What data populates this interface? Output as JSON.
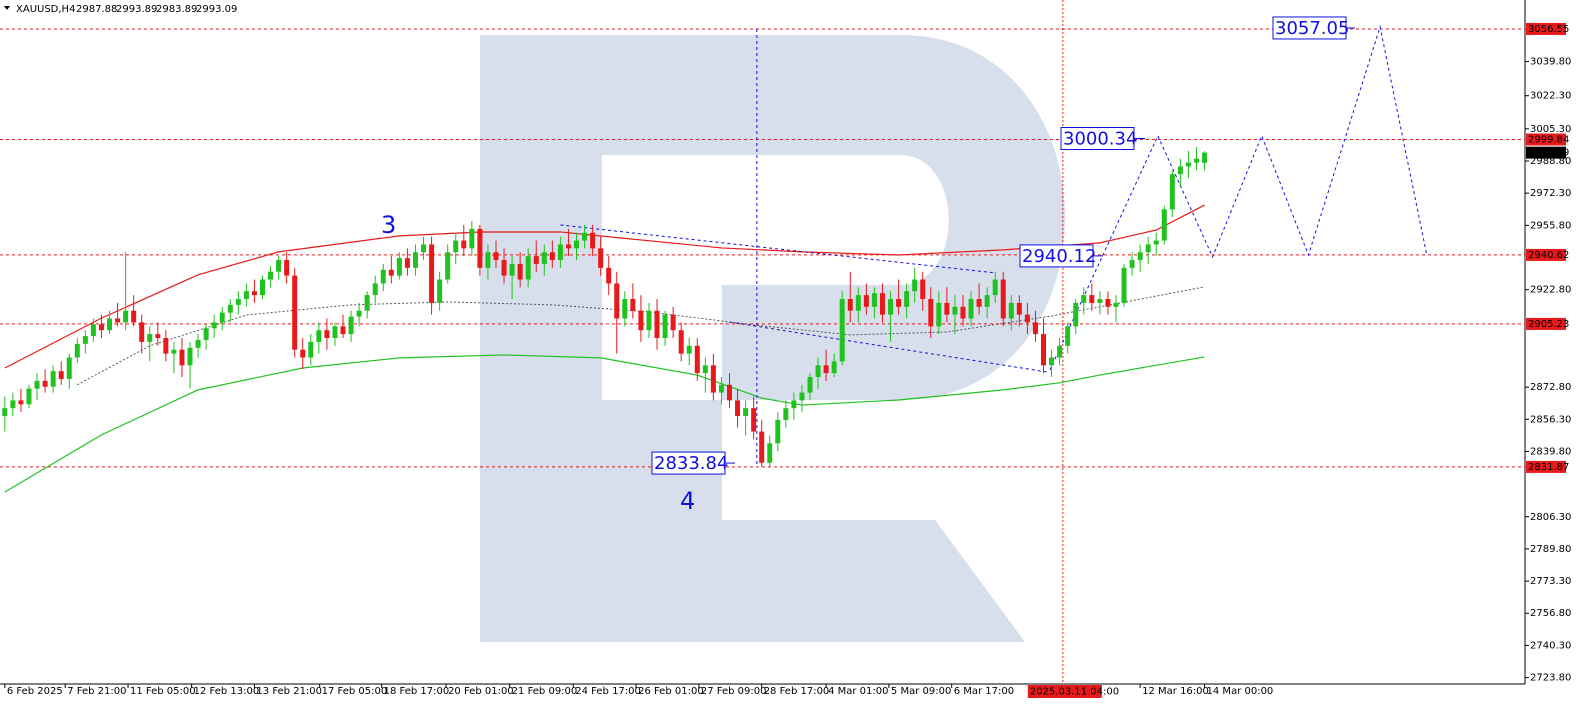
{
  "chart_data": {
    "type": "candlestick",
    "title": "XAUUSD,H4",
    "up_color": "#1fc21f",
    "down_color": "#e8191b",
    "xlim": [
      -0.6,
      188.8
    ],
    "ylim": [
      2720.5,
      3071.4
    ],
    "yticks": [
      {
        "value": 3039.8,
        "label": "3039.80"
      },
      {
        "value": 3022.3,
        "label": "3022.30"
      },
      {
        "value": 3005.3,
        "label": "3005.30"
      },
      {
        "value": 2988.8,
        "label": "2988.80"
      },
      {
        "value": 2972.3,
        "label": "2972.30"
      },
      {
        "value": 2955.8,
        "label": "2955.80"
      },
      {
        "value": 2922.8,
        "label": "2922.80"
      },
      {
        "value": 2872.8,
        "label": "2872.80"
      },
      {
        "value": 2856.3,
        "label": "2856.30"
      },
      {
        "value": 2839.8,
        "label": "2839.80"
      },
      {
        "value": 2806.3,
        "label": "2806.30"
      },
      {
        "value": 2789.8,
        "label": "2789.80"
      },
      {
        "value": 2773.3,
        "label": "2773.30"
      },
      {
        "value": 2756.8,
        "label": "2756.80"
      },
      {
        "value": 2740.3,
        "label": "2740.30"
      },
      {
        "value": 2723.8,
        "label": "2723.80"
      }
    ],
    "xticks": [
      {
        "value": 0,
        "label": "6 Feb 2025"
      },
      {
        "value": 7.5,
        "label": "7 Feb 21:00"
      },
      {
        "value": 15.3,
        "label": "11 Feb 05:00"
      },
      {
        "value": 23.2,
        "label": "12 Feb 13:00"
      },
      {
        "value": 31,
        "label": "13 Feb 21:00"
      },
      {
        "value": 39.1,
        "label": "17 Feb 05:00"
      },
      {
        "value": 46.8,
        "label": "18 Feb 17:00"
      },
      {
        "value": 54.8,
        "label": "20 Feb 01:00"
      },
      {
        "value": 62.7,
        "label": "21 Feb 09:00"
      },
      {
        "value": 70.6,
        "label": "24 Feb 17:00"
      },
      {
        "value": 78.4,
        "label": "26 Feb 01:00"
      },
      {
        "value": 86.2,
        "label": "27 Feb 09:00"
      },
      {
        "value": 94,
        "label": "28 Feb 17:00"
      },
      {
        "value": 102,
        "label": "4 Mar 01:00"
      },
      {
        "value": 109.8,
        "label": "5 Mar 09:00"
      },
      {
        "value": 117.6,
        "label": "6 Mar 17:00"
      },
      {
        "value": 141,
        "label": "12 Mar 16:00"
      },
      {
        "value": 149,
        "label": "14 Mar 00:00"
      }
    ],
    "crosshair": {
      "value": 131.4,
      "label": "2025.03.11 04:00"
    },
    "levels": [
      3056.55,
      2999.84,
      2940.62,
      2905.23,
      2831.87
    ],
    "wave_labels": [
      "3",
      "4"
    ],
    "price_labels": [
      3057.05,
      3000.34,
      2940.12,
      2833.84
    ],
    "lines": [
      {
        "color": "#e8191b",
        "style": "solid",
        "x": [
          0,
          12,
          24,
          34,
          49,
          59,
          69,
          79,
          89,
          99,
          111,
          124,
          136,
          143,
          149
        ],
        "values": [
          2882.6,
          2908.2,
          2930.4,
          2942.2,
          2950.4,
          2952.4,
          2952.4,
          2948.3,
          2944.2,
          2942.2,
          2940.6,
          2943.2,
          2946.8,
          2953.4,
          2966.2
        ]
      },
      {
        "color": "#1fc21f",
        "style": "solid",
        "x": [
          0,
          12,
          24,
          37,
          49,
          62,
          74,
          86,
          94,
          99,
          111,
          124,
          131,
          136,
          149
        ],
        "values": [
          2819.0,
          2848.3,
          2871.4,
          2882.6,
          2887.8,
          2889.3,
          2887.8,
          2879.0,
          2867.2,
          2863.6,
          2866.2,
          2871.4,
          2875.0,
          2879.0,
          2888.3
        ]
      },
      {
        "color": "#555555",
        "style": "dotted",
        "x": [
          9,
          18,
          30,
          43,
          55,
          68,
          80,
          93,
          105,
          117,
          130,
          149
        ],
        "values": [
          2874.0,
          2894.0,
          2909.8,
          2915.0,
          2916.5,
          2915.0,
          2911.4,
          2904.7,
          2899.6,
          2901.1,
          2909.3,
          2924.2
        ]
      },
      {
        "color": "#1010e0",
        "style": "dashed",
        "x": [
          129.8,
          143.2,
          150,
          156.1,
          161.9,
          170.8,
          176.6
        ],
        "values": [
          2881.6,
          3001.7,
          2939.6,
          3001.7,
          2940.6,
          3057.6,
          2940.6
        ]
      },
      {
        "color": "#1010e0",
        "style": "dashed",
        "x": [
          69,
          123
        ],
        "values": [
          2956.0,
          2931.4
        ]
      },
      {
        "color": "#1010e0",
        "style": "dashed",
        "x": [
          90,
          129.4
        ],
        "values": [
          2906.2,
          2880.6
        ]
      },
      {
        "color": "#1010e0",
        "style": "dashed",
        "x": [
          93.4,
          93.4
        ],
        "values": [
          3056.55,
          2832.9
        ]
      }
    ],
    "candles": [
      [
        2858,
        2868,
        2850,
        2862
      ],
      [
        2862,
        2870,
        2858,
        2866
      ],
      [
        2866,
        2872,
        2860,
        2864
      ],
      [
        2864,
        2874,
        2862,
        2872
      ],
      [
        2872,
        2880,
        2866,
        2876
      ],
      [
        2876,
        2882,
        2870,
        2873
      ],
      [
        2873,
        2884,
        2870,
        2881
      ],
      [
        2881,
        2886,
        2874,
        2877
      ],
      [
        2877,
        2890,
        2872,
        2888
      ],
      [
        2888,
        2898,
        2885,
        2895
      ],
      [
        2895,
        2902,
        2890,
        2899
      ],
      [
        2899,
        2908,
        2896,
        2905
      ],
      [
        2905,
        2910,
        2898,
        2902
      ],
      [
        2902,
        2912,
        2900,
        2908
      ],
      [
        2908,
        2916,
        2904,
        2906
      ],
      [
        2906,
        2942,
        2902,
        2912
      ],
      [
        2912,
        2920,
        2904,
        2906
      ],
      [
        2906,
        2910,
        2890,
        2896
      ],
      [
        2896,
        2904,
        2886,
        2900
      ],
      [
        2900,
        2906,
        2894,
        2898
      ],
      [
        2898,
        2902,
        2886,
        2890
      ],
      [
        2890,
        2896,
        2880,
        2892
      ],
      [
        2892,
        2898,
        2878,
        2884
      ],
      [
        2884,
        2896,
        2872,
        2893
      ],
      [
        2893,
        2900,
        2888,
        2897
      ],
      [
        2897,
        2905,
        2892,
        2903
      ],
      [
        2903,
        2910,
        2898,
        2906
      ],
      [
        2906,
        2914,
        2902,
        2911
      ],
      [
        2911,
        2918,
        2906,
        2915
      ],
      [
        2915,
        2922,
        2910,
        2918
      ],
      [
        2918,
        2926,
        2914,
        2922
      ],
      [
        2922,
        2928,
        2916,
        2920
      ],
      [
        2920,
        2930,
        2918,
        2928
      ],
      [
        2928,
        2935,
        2924,
        2932
      ],
      [
        2932,
        2940,
        2928,
        2938
      ],
      [
        2938,
        2942,
        2926,
        2930
      ],
      [
        2930,
        2934,
        2888,
        2892
      ],
      [
        2892,
        2898,
        2882,
        2888
      ],
      [
        2888,
        2900,
        2884,
        2896
      ],
      [
        2896,
        2906,
        2890,
        2902
      ],
      [
        2902,
        2908,
        2892,
        2898
      ],
      [
        2898,
        2906,
        2894,
        2904
      ],
      [
        2904,
        2910,
        2898,
        2900
      ],
      [
        2900,
        2912,
        2896,
        2909
      ],
      [
        2909,
        2916,
        2904,
        2912
      ],
      [
        2912,
        2922,
        2908,
        2920
      ],
      [
        2920,
        2930,
        2916,
        2926
      ],
      [
        2926,
        2936,
        2922,
        2933
      ],
      [
        2933,
        2940,
        2926,
        2930
      ],
      [
        2930,
        2942,
        2928,
        2939
      ],
      [
        2939,
        2944,
        2930,
        2934
      ],
      [
        2934,
        2946,
        2930,
        2942
      ],
      [
        2942,
        2950,
        2938,
        2946
      ],
      [
        2946,
        2950,
        2910,
        2916
      ],
      [
        2916,
        2932,
        2912,
        2928
      ],
      [
        2928,
        2946,
        2926,
        2942
      ],
      [
        2942,
        2952,
        2936,
        2948
      ],
      [
        2948,
        2956,
        2940,
        2944
      ],
      [
        2944,
        2958,
        2940,
        2954
      ],
      [
        2954,
        2956,
        2930,
        2934
      ],
      [
        2934,
        2946,
        2928,
        2942
      ],
      [
        2942,
        2948,
        2934,
        2938
      ],
      [
        2938,
        2944,
        2926,
        2930
      ],
      [
        2930,
        2940,
        2918,
        2936
      ],
      [
        2936,
        2942,
        2924,
        2928
      ],
      [
        2928,
        2944,
        2924,
        2940
      ],
      [
        2940,
        2948,
        2932,
        2936
      ],
      [
        2936,
        2946,
        2930,
        2942
      ],
      [
        2942,
        2948,
        2934,
        2938
      ],
      [
        2938,
        2950,
        2934,
        2946
      ],
      [
        2946,
        2954,
        2940,
        2944
      ],
      [
        2944,
        2952,
        2938,
        2948
      ],
      [
        2948,
        2956,
        2944,
        2952
      ],
      [
        2952,
        2956,
        2940,
        2944
      ],
      [
        2944,
        2950,
        2930,
        2934
      ],
      [
        2934,
        2940,
        2920,
        2926
      ],
      [
        2926,
        2932,
        2890,
        2908
      ],
      [
        2908,
        2922,
        2904,
        2918
      ],
      [
        2918,
        2926,
        2908,
        2912
      ],
      [
        2912,
        2920,
        2896,
        2902
      ],
      [
        2902,
        2916,
        2898,
        2912
      ],
      [
        2912,
        2918,
        2892,
        2898
      ],
      [
        2898,
        2912,
        2894,
        2910
      ],
      [
        2910,
        2914,
        2898,
        2902
      ],
      [
        2902,
        2906,
        2886,
        2890
      ],
      [
        2890,
        2898,
        2884,
        2894
      ],
      [
        2894,
        2898,
        2876,
        2880
      ],
      [
        2880,
        2888,
        2870,
        2884
      ],
      [
        2884,
        2890,
        2866,
        2870
      ],
      [
        2870,
        2878,
        2864,
        2874
      ],
      [
        2874,
        2880,
        2862,
        2866
      ],
      [
        2866,
        2872,
        2852,
        2858
      ],
      [
        2858,
        2866,
        2848,
        2862
      ],
      [
        2862,
        2868,
        2846,
        2850
      ],
      [
        2850,
        2856,
        2832,
        2834
      ],
      [
        2834,
        2848,
        2832,
        2844
      ],
      [
        2844,
        2860,
        2840,
        2856
      ],
      [
        2856,
        2866,
        2852,
        2862
      ],
      [
        2862,
        2870,
        2856,
        2866
      ],
      [
        2866,
        2874,
        2860,
        2870
      ],
      [
        2870,
        2880,
        2866,
        2878
      ],
      [
        2878,
        2888,
        2872,
        2884
      ],
      [
        2884,
        2892,
        2876,
        2880
      ],
      [
        2880,
        2890,
        2878,
        2886
      ],
      [
        2886,
        2922,
        2884,
        2918
      ],
      [
        2918,
        2932,
        2906,
        2912
      ],
      [
        2912,
        2924,
        2906,
        2920
      ],
      [
        2920,
        2926,
        2910,
        2914
      ],
      [
        2914,
        2924,
        2908,
        2921
      ],
      [
        2921,
        2926,
        2906,
        2910
      ],
      [
        2910,
        2922,
        2896,
        2918
      ],
      [
        2918,
        2928,
        2910,
        2914
      ],
      [
        2914,
        2926,
        2908,
        2922
      ],
      [
        2922,
        2934,
        2916,
        2928
      ],
      [
        2928,
        2932,
        2912,
        2918
      ],
      [
        2918,
        2924,
        2898,
        2904
      ],
      [
        2904,
        2922,
        2900,
        2916
      ],
      [
        2916,
        2924,
        2906,
        2910
      ],
      [
        2910,
        2920,
        2900,
        2914
      ],
      [
        2914,
        2920,
        2904,
        2908
      ],
      [
        2908,
        2922,
        2904,
        2918
      ],
      [
        2918,
        2926,
        2910,
        2914
      ],
      [
        2914,
        2924,
        2908,
        2920
      ],
      [
        2920,
        2932,
        2916,
        2928
      ],
      [
        2928,
        2932,
        2904,
        2908
      ],
      [
        2908,
        2920,
        2902,
        2916
      ],
      [
        2916,
        2920,
        2904,
        2910
      ],
      [
        2910,
        2916,
        2900,
        2906
      ],
      [
        2906,
        2912,
        2896,
        2900
      ],
      [
        2900,
        2908,
        2880,
        2884
      ],
      [
        2884,
        2892,
        2878,
        2888
      ],
      [
        2888,
        2898,
        2884,
        2894
      ],
      [
        2894,
        2906,
        2890,
        2904
      ],
      [
        2904,
        2918,
        2900,
        2916
      ],
      [
        2916,
        2924,
        2910,
        2920
      ],
      [
        2920,
        2926,
        2912,
        2916
      ],
      [
        2916,
        2922,
        2910,
        2918
      ],
      [
        2918,
        2922,
        2910,
        2914
      ],
      [
        2914,
        2920,
        2906,
        2916
      ],
      [
        2916,
        2936,
        2914,
        2934
      ],
      [
        2934,
        2942,
        2930,
        2938
      ],
      [
        2938,
        2946,
        2932,
        2942
      ],
      [
        2942,
        2950,
        2936,
        2946
      ],
      [
        2946,
        2952,
        2940,
        2948
      ],
      [
        2948,
        2966,
        2946,
        2964
      ],
      [
        2964,
        2984,
        2960,
        2982
      ],
      [
        2982,
        2990,
        2976,
        2986
      ],
      [
        2986,
        2994,
        2980,
        2988
      ],
      [
        2988,
        2996,
        2984,
        2990
      ],
      [
        2987.88,
        2993.89,
        2983.89,
        2993.09
      ]
    ]
  }
}
